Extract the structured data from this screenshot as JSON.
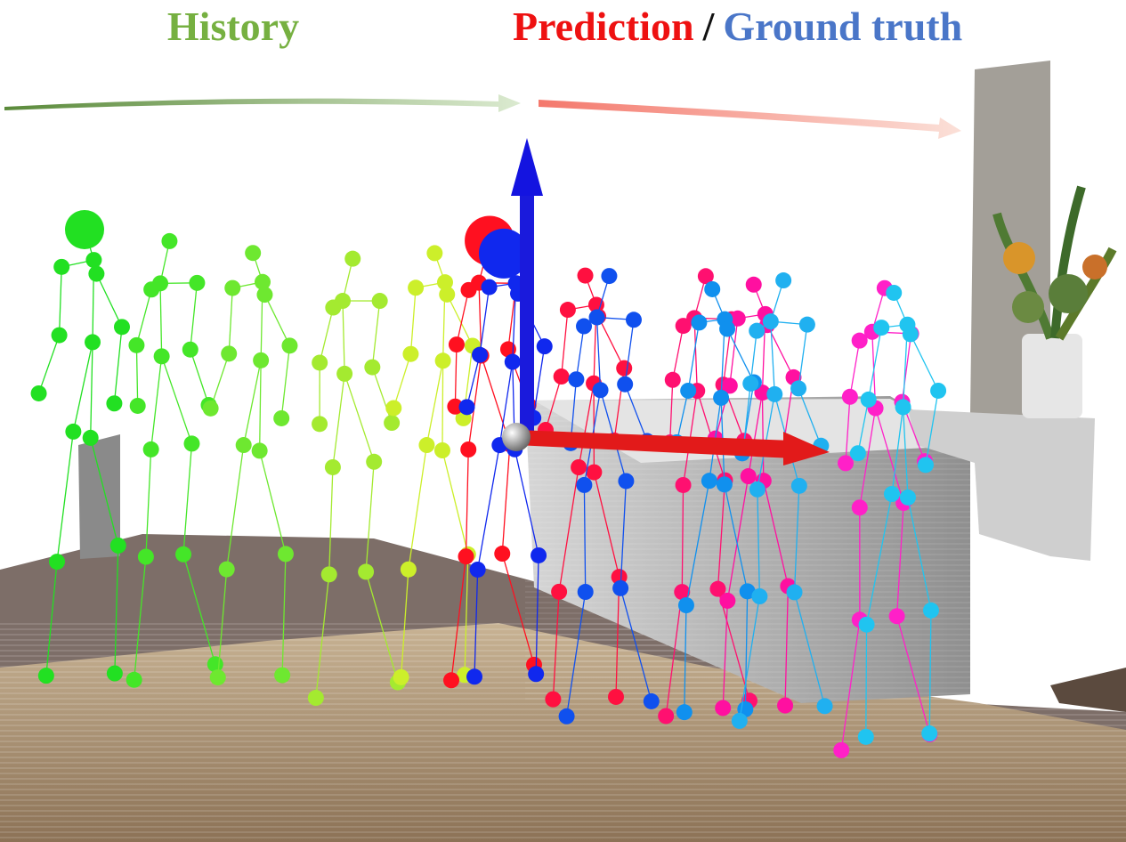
{
  "header": {
    "history": "History",
    "prediction": "Prediction",
    "separator": "/",
    "ground_truth": "Ground truth"
  }
}
